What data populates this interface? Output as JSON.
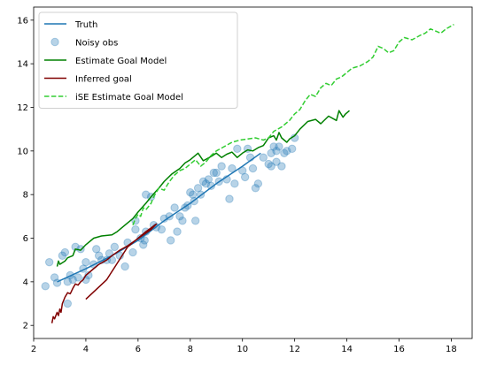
{
  "chart_data": {
    "type": "line",
    "title": "",
    "xlabel": "",
    "ylabel": "",
    "xlim": [
      2.0,
      18.8
    ],
    "ylim": [
      1.4,
      16.6
    ],
    "xticks": [
      2,
      4,
      6,
      8,
      10,
      12,
      14,
      16,
      18
    ],
    "yticks": [
      2,
      4,
      6,
      8,
      10,
      12,
      14,
      16
    ],
    "xtick_labels": [
      "2",
      "4",
      "6",
      "8",
      "10",
      "12",
      "14",
      "16",
      "18"
    ],
    "ytick_labels": [
      "2",
      "4",
      "6",
      "8",
      "10",
      "12",
      "14",
      "16"
    ],
    "grid": false,
    "legend_position": "top-left",
    "series": [
      {
        "name": "Truth",
        "kind": "line",
        "color": "#1f77b4",
        "x": [
          2.9,
          4.0,
          5.0,
          6.0,
          7.0,
          8.0,
          9.0,
          10.0,
          10.7
        ],
        "y": [
          4.0,
          4.6,
          5.2,
          5.9,
          6.8,
          7.6,
          8.5,
          9.3,
          9.9
        ]
      },
      {
        "name": "Noisy obs",
        "kind": "scatter",
        "color": "#1f77b4",
        "x": [
          2.45,
          2.6,
          2.8,
          2.9,
          3.1,
          3.2,
          3.3,
          3.3,
          3.4,
          3.5,
          3.6,
          3.7,
          3.8,
          3.9,
          4.0,
          4.0,
          4.1,
          4.3,
          4.5,
          4.6,
          4.8,
          4.9,
          5.0,
          5.1,
          5.3,
          5.5,
          5.6,
          5.8,
          5.9,
          6.1,
          6.2,
          6.25,
          6.3,
          6.3,
          6.5,
          6.7,
          6.9,
          7.0,
          7.2,
          7.25,
          7.4,
          7.5,
          7.6,
          7.7,
          7.8,
          7.9,
          8.0,
          8.1,
          8.15,
          8.2,
          8.3,
          8.4,
          8.5,
          8.6,
          8.7,
          8.8,
          9.0,
          9.1,
          9.2,
          9.4,
          9.5,
          9.7,
          9.8,
          10.0,
          10.1,
          10.2,
          10.4,
          10.5,
          10.6,
          10.8,
          11.0,
          11.1,
          11.2,
          11.3,
          11.4,
          11.5,
          11.6,
          11.7,
          11.9,
          12.0,
          11.3,
          11.1,
          9.6,
          10.3,
          6.6,
          5.9,
          4.4,
          8.9
        ],
        "y": [
          3.8,
          4.9,
          4.2,
          3.95,
          5.2,
          5.35,
          4.0,
          3.0,
          4.3,
          4.1,
          5.6,
          4.2,
          5.5,
          4.6,
          4.1,
          4.9,
          4.3,
          4.8,
          5.2,
          5.0,
          5.0,
          5.3,
          5.0,
          5.6,
          5.2,
          4.7,
          5.8,
          5.35,
          6.4,
          6.0,
          5.7,
          5.9,
          6.3,
          8.0,
          7.9,
          6.5,
          6.4,
          6.9,
          7.0,
          5.9,
          7.4,
          6.3,
          7.0,
          6.8,
          7.4,
          7.5,
          8.1,
          8.0,
          7.7,
          6.8,
          8.3,
          8.0,
          8.6,
          8.5,
          8.7,
          8.4,
          9.0,
          8.6,
          9.3,
          8.7,
          7.8,
          8.5,
          10.1,
          9.1,
          8.8,
          10.1,
          9.2,
          8.3,
          8.5,
          9.7,
          9.4,
          9.9,
          10.2,
          9.5,
          10.2,
          9.3,
          9.9,
          10.0,
          10.1,
          10.6,
          10.0,
          9.3,
          9.2,
          9.7,
          6.6,
          6.8,
          5.5,
          9.0
        ]
      },
      {
        "name": "Estimate Goal Model",
        "kind": "line",
        "color": "#008000",
        "x": [
          2.9,
          2.95,
          3.0,
          3.2,
          3.3,
          3.5,
          3.6,
          3.8,
          4.0,
          4.3,
          4.6,
          5.0,
          5.2,
          5.5,
          5.8,
          6.0,
          6.3,
          6.5,
          6.8,
          7.0,
          7.3,
          7.6,
          7.8,
          8.0,
          8.3,
          8.5,
          8.8,
          9.0,
          9.2,
          9.4,
          9.6,
          9.8,
          10.0,
          10.2,
          10.4,
          10.6,
          10.8,
          11.0,
          11.2,
          11.3,
          11.4,
          11.5,
          11.7,
          11.8,
          12.0,
          12.2,
          12.5,
          12.8,
          13.0,
          13.3,
          13.6,
          13.7,
          13.85,
          13.95,
          14.1
        ],
        "y": [
          4.7,
          4.95,
          4.8,
          4.95,
          5.1,
          5.2,
          5.5,
          5.45,
          5.7,
          6.0,
          6.1,
          6.15,
          6.3,
          6.6,
          6.9,
          7.2,
          7.6,
          7.9,
          8.3,
          8.6,
          8.95,
          9.2,
          9.45,
          9.6,
          9.9,
          9.55,
          9.75,
          9.9,
          9.7,
          9.85,
          9.95,
          9.7,
          9.9,
          10.05,
          10.0,
          10.15,
          10.25,
          10.6,
          10.7,
          10.5,
          10.85,
          10.6,
          10.4,
          10.55,
          10.7,
          11.0,
          11.35,
          11.45,
          11.25,
          11.6,
          11.4,
          11.85,
          11.55,
          11.7,
          11.85
        ]
      },
      {
        "name": "Inferred goal",
        "kind": "line",
        "color": "#800000",
        "x": [
          2.7,
          2.75,
          2.8,
          2.9,
          2.95,
          3.0,
          3.05,
          3.1,
          3.2,
          3.3,
          3.4,
          3.5,
          3.6,
          3.7,
          3.8,
          3.9,
          4.0,
          4.2,
          4.5,
          4.8,
          5.0,
          5.3,
          5.6,
          5.9,
          6.2,
          6.5,
          6.7,
          6.3,
          5.6,
          4.8,
          4.0
        ],
        "y": [
          2.1,
          2.4,
          2.3,
          2.6,
          2.45,
          2.75,
          2.6,
          3.0,
          3.3,
          3.5,
          3.45,
          3.7,
          3.9,
          3.85,
          4.0,
          4.1,
          4.3,
          4.5,
          4.8,
          5.0,
          5.2,
          5.45,
          5.65,
          5.9,
          6.15,
          6.4,
          6.65,
          6.3,
          5.6,
          4.1,
          3.2
        ]
      },
      {
        "name": "iSE Estimate Goal Model",
        "kind": "dashed-line",
        "color": "#32cd32",
        "x": [
          5.8,
          5.9,
          6.0,
          6.1,
          6.2,
          6.3,
          6.5,
          6.6,
          6.8,
          7.0,
          7.2,
          7.4,
          7.6,
          7.8,
          8.0,
          8.2,
          8.4,
          8.6,
          8.8,
          9.0,
          9.3,
          9.6,
          9.9,
          10.2,
          10.5,
          10.8,
          11.0,
          11.2,
          11.5,
          11.8,
          12.0,
          12.2,
          12.4,
          12.6,
          12.8,
          13.0,
          13.2,
          13.4,
          13.6,
          13.8,
          14.0,
          14.2,
          14.5,
          14.8,
          15.0,
          15.2,
          15.4,
          15.6,
          15.8,
          16.0,
          16.2,
          16.5,
          16.8,
          17.0,
          17.2,
          17.4,
          17.6,
          17.8,
          18.1
        ],
        "y": [
          6.6,
          6.9,
          7.1,
          7.0,
          7.4,
          7.3,
          7.6,
          7.9,
          8.3,
          8.2,
          8.6,
          8.9,
          9.1,
          9.2,
          9.4,
          9.6,
          9.3,
          9.5,
          9.8,
          10.0,
          10.2,
          10.4,
          10.5,
          10.55,
          10.6,
          10.5,
          10.6,
          10.9,
          11.1,
          11.4,
          11.7,
          11.9,
          12.3,
          12.6,
          12.5,
          12.9,
          13.1,
          13.0,
          13.3,
          13.4,
          13.6,
          13.8,
          13.9,
          14.1,
          14.3,
          14.8,
          14.7,
          14.5,
          14.6,
          15.0,
          15.2,
          15.1,
          15.3,
          15.4,
          15.6,
          15.5,
          15.4,
          15.6,
          15.8
        ]
      }
    ]
  }
}
